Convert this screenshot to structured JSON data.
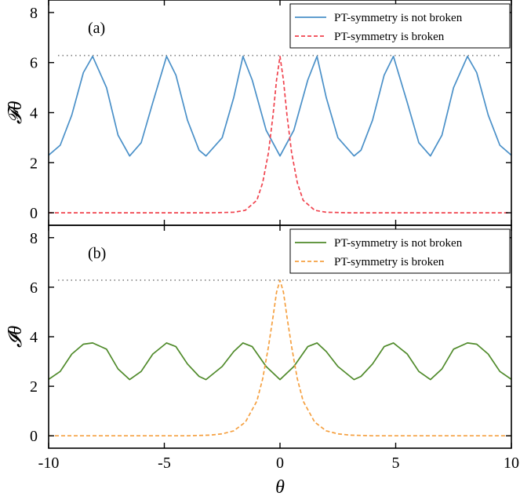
{
  "chart_data": [
    {
      "type": "line",
      "panel_label": "(a)",
      "ylabel": "𝓕θ",
      "xlim": [
        -10,
        10
      ],
      "ylim": [
        -0.5,
        8.5
      ],
      "yticks": [
        0,
        2,
        4,
        6,
        8
      ],
      "reference_line": {
        "y": 6.2832,
        "style": "dotted",
        "color": "#808080"
      },
      "legend": {
        "position": "top-right",
        "border": true
      },
      "series": [
        {
          "name": "PT-symmetry is not broken",
          "color": "#4a90c8",
          "dash": "solid",
          "x": [
            -10,
            -9.5,
            -9,
            -8.5,
            -8.1,
            -7.5,
            -7,
            -6.5,
            -6,
            -5.5,
            -4.9,
            -4.5,
            -4,
            -3.5,
            -3.2,
            -2.5,
            -2,
            -1.6,
            -1.2,
            -0.6,
            0,
            0.6,
            1.2,
            1.6,
            2,
            2.5,
            3.2,
            3.5,
            4,
            4.5,
            4.9,
            5.5,
            6,
            6.5,
            7,
            7.5,
            8.1,
            8.5,
            9,
            9.5,
            10
          ],
          "y": [
            2.3,
            2.7,
            3.9,
            5.6,
            6.25,
            5.0,
            3.1,
            2.27,
            2.8,
            4.4,
            6.25,
            5.5,
            3.7,
            2.5,
            2.27,
            3.0,
            4.6,
            6.25,
            5.3,
            3.3,
            2.27,
            3.3,
            5.3,
            6.25,
            4.6,
            3.0,
            2.27,
            2.5,
            3.7,
            5.5,
            6.25,
            4.4,
            2.8,
            2.27,
            3.1,
            5.0,
            6.25,
            5.6,
            3.9,
            2.7,
            2.3
          ]
        },
        {
          "name": "PT-symmetry is broken",
          "color": "#f0434e",
          "dash": "dashed",
          "x": [
            -10,
            -3,
            -2,
            -1.5,
            -1,
            -0.75,
            -0.5,
            -0.3,
            -0.15,
            0,
            0.15,
            0.3,
            0.5,
            0.75,
            1,
            1.5,
            2,
            3,
            10
          ],
          "y": [
            0,
            0,
            0.02,
            0.1,
            0.5,
            1.2,
            2.4,
            3.9,
            5.3,
            6.25,
            5.3,
            3.9,
            2.4,
            1.2,
            0.5,
            0.1,
            0.02,
            0,
            0
          ]
        }
      ]
    },
    {
      "type": "line",
      "panel_label": "(b)",
      "ylabel": "𝓘θ",
      "xlabel": "θ",
      "xlim": [
        -10,
        10
      ],
      "ylim": [
        -0.5,
        8.5
      ],
      "xticks": [
        -10,
        -5,
        0,
        5,
        10
      ],
      "yticks": [
        0,
        2,
        4,
        6,
        8
      ],
      "reference_line": {
        "y": 6.2832,
        "style": "dotted",
        "color": "#808080"
      },
      "legend": {
        "position": "top-right",
        "border": true
      },
      "series": [
        {
          "name": "PT-symmetry is not broken",
          "color": "#4f8a2a",
          "dash": "solid",
          "x": [
            -10,
            -9.5,
            -9,
            -8.5,
            -8.1,
            -7.5,
            -7,
            -6.5,
            -6,
            -5.5,
            -4.9,
            -4.5,
            -4,
            -3.5,
            -3.2,
            -2.5,
            -2,
            -1.6,
            -1.2,
            -0.6,
            0,
            0.6,
            1.2,
            1.6,
            2,
            2.5,
            3.2,
            3.5,
            4,
            4.5,
            4.9,
            5.5,
            6,
            6.5,
            7,
            7.5,
            8.1,
            8.5,
            9,
            9.5,
            10
          ],
          "y": [
            2.28,
            2.6,
            3.3,
            3.7,
            3.75,
            3.5,
            2.7,
            2.27,
            2.6,
            3.3,
            3.75,
            3.6,
            2.9,
            2.4,
            2.27,
            2.8,
            3.4,
            3.75,
            3.6,
            2.8,
            2.27,
            2.8,
            3.6,
            3.75,
            3.4,
            2.8,
            2.27,
            2.4,
            2.9,
            3.6,
            3.75,
            3.3,
            2.6,
            2.27,
            2.7,
            3.5,
            3.75,
            3.7,
            3.3,
            2.6,
            2.28
          ]
        },
        {
          "name": "PT-symmetry is broken",
          "color": "#f5a040",
          "dash": "dashed",
          "x": [
            -10,
            -4,
            -3,
            -2.5,
            -2,
            -1.5,
            -1,
            -0.75,
            -0.5,
            -0.3,
            -0.15,
            0,
            0.15,
            0.3,
            0.5,
            0.75,
            1,
            1.5,
            2,
            2.5,
            3,
            4,
            10
          ],
          "y": [
            0,
            0,
            0.03,
            0.08,
            0.2,
            0.55,
            1.4,
            2.3,
            3.6,
            4.8,
            5.8,
            6.28,
            5.8,
            4.8,
            3.6,
            2.3,
            1.4,
            0.55,
            0.2,
            0.08,
            0.03,
            0,
            0
          ]
        }
      ]
    }
  ]
}
